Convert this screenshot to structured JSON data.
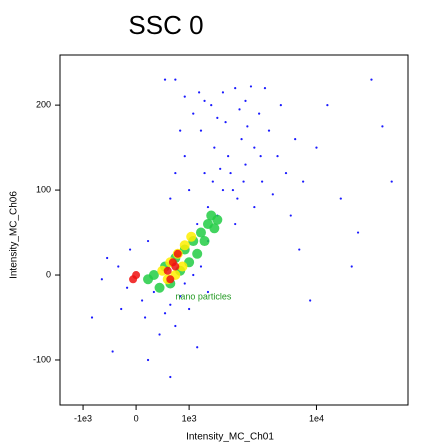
{
  "chart_data": {
    "type": "scatter",
    "title": "SSC 0",
    "x_label": "Intensity_MC_Ch01",
    "y_label": "Intensity_MC_Ch06",
    "xscale": "logicle",
    "xlim": [
      -1630,
      45900
    ],
    "ylim": [
      -153,
      259
    ],
    "xticks": [
      {
        "value": -1000,
        "label": "-1e3"
      },
      0,
      {
        "value": 1000,
        "label": "1e3"
      },
      {
        "value": 10000,
        "label": "1e4"
      }
    ],
    "yticks": [
      -100,
      0,
      100,
      200
    ],
    "annotation": {
      "text": "nano particles",
      "x": 700,
      "y": -26,
      "color": "#229922"
    },
    "series": [
      {
        "color": "#1a1aff",
        "x": [
          -300,
          -150,
          -500,
          100,
          300,
          600,
          800,
          200,
          -100,
          500,
          900,
          1100,
          1300,
          700,
          400,
          150,
          -250,
          1500,
          -600,
          1000,
          1200,
          1500,
          1800,
          2000,
          2300,
          2600,
          3000,
          3500,
          4000,
          2800,
          2100,
          1700,
          1400,
          1000,
          900,
          1300,
          1600,
          2000,
          2500,
          3000,
          3800,
          4500,
          5200,
          6000,
          4200,
          3300,
          2700,
          2200,
          1900,
          1100,
          800,
          700,
          600,
          1500,
          2500,
          3500,
          4800,
          6500,
          8000,
          1250,
          900,
          1650,
          2400,
          3100,
          5500,
          7000,
          3900,
          2900,
          1800,
          1400,
          10000,
          15000,
          20000,
          12000,
          30000,
          25000,
          18000,
          7500,
          -800,
          -400,
          200,
          600,
          1200,
          9000,
          500,
          700,
          35000
        ],
        "y": [
          10,
          -15,
          20,
          -30,
          -20,
          -35,
          -25,
          40,
          30,
          -45,
          -10,
          0,
          10,
          -60,
          -70,
          -50,
          -40,
          -20,
          -5,
          -40,
          60,
          80,
          70,
          100,
          120,
          90,
          130,
          150,
          110,
          160,
          180,
          150,
          120,
          100,
          140,
          170,
          200,
          215,
          220,
          205,
          190,
          170,
          140,
          120,
          220,
          222,
          195,
          140,
          125,
          190,
          170,
          120,
          90,
          40,
          60,
          80,
          95,
          70,
          110,
          215,
          210,
          110,
          100,
          175,
          200,
          160,
          140,
          110,
          185,
          205,
          150,
          90,
          50,
          200,
          175,
          230,
          10,
          30,
          -50,
          -90,
          -100,
          -120,
          -85,
          -30,
          230,
          230,
          110
        ]
      },
      {
        "color": "#22cc44",
        "x": [
          300,
          500,
          700,
          900,
          1100,
          1300,
          1500,
          400,
          600,
          800,
          1000,
          1200,
          1400,
          1700,
          1600,
          200,
          1800
        ],
        "y": [
          0,
          10,
          20,
          30,
          40,
          50,
          60,
          -15,
          -10,
          5,
          15,
          25,
          40,
          55,
          70,
          -5,
          65
        ]
      },
      {
        "color": "#ffee00",
        "x": [
          450,
          600,
          750,
          900,
          1050,
          550,
          700,
          850
        ],
        "y": [
          5,
          15,
          25,
          35,
          45,
          -5,
          0,
          10
        ]
      },
      {
        "color": "#ee1111",
        "x": [
          550,
          650,
          750,
          600,
          700,
          -50,
          0
        ],
        "y": [
          5,
          15,
          25,
          -5,
          10,
          -5,
          0
        ]
      }
    ]
  }
}
